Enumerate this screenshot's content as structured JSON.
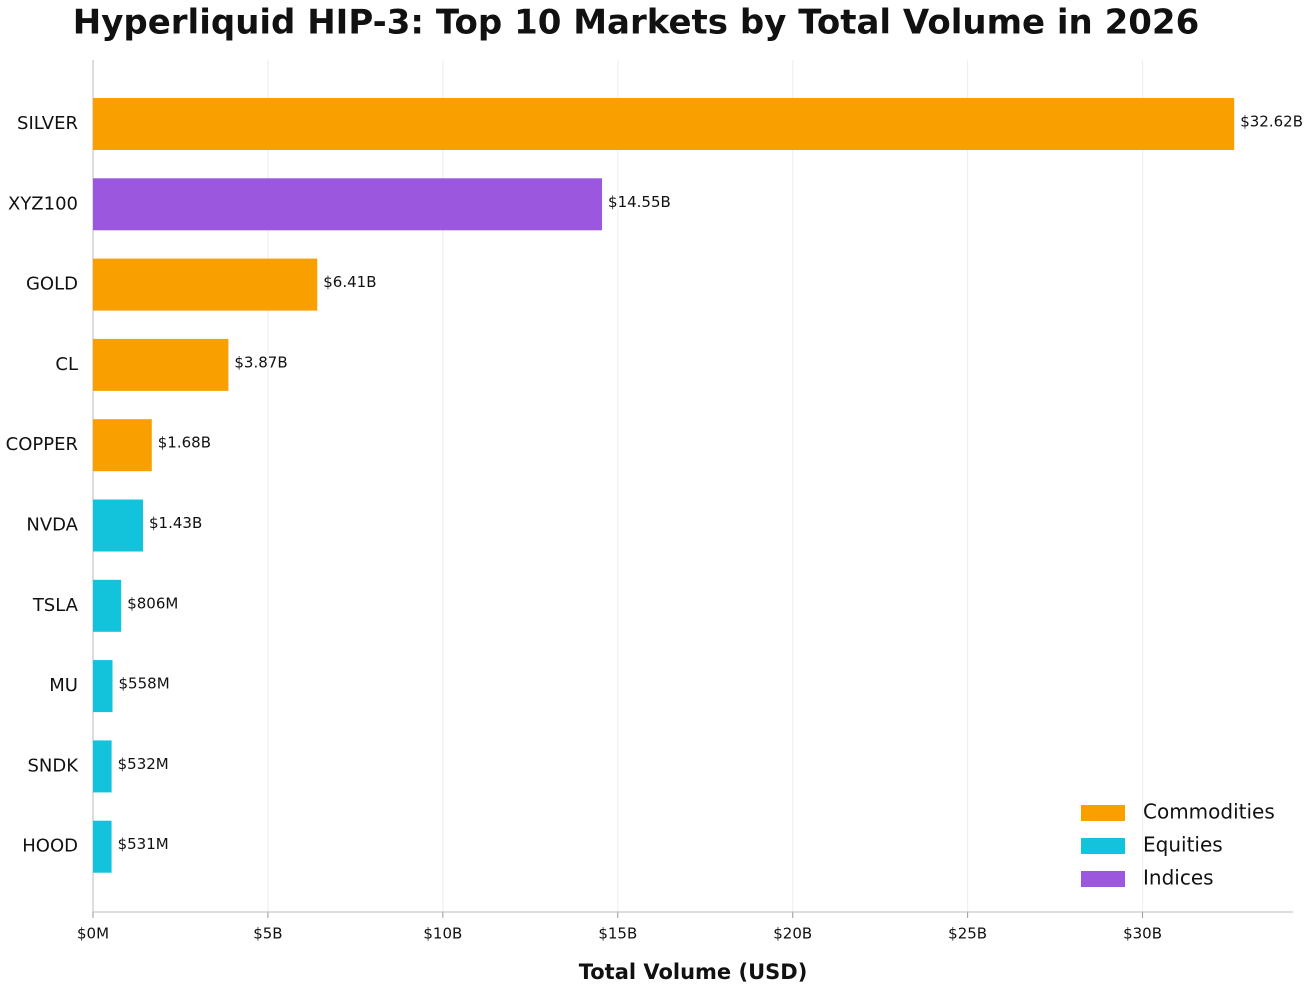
{
  "chart_data": {
    "type": "bar",
    "orientation": "horizontal",
    "title": "Hyperliquid HIP-3: Top 10 Markets by Total Volume in 2026",
    "x_label": "Total Volume (USD)",
    "categories": [
      "SILVER",
      "XYZ100",
      "GOLD",
      "CL",
      "COPPER",
      "NVDA",
      "TSLA",
      "MU",
      "SNDK",
      "HOOD"
    ],
    "series": [
      {
        "name": "Commodities",
        "color": "#f9a000",
        "values": [
          32.62,
          null,
          6.41,
          3.87,
          1.68,
          null,
          null,
          null,
          null,
          null
        ],
        "value_labels": [
          "$32.62B",
          null,
          "$6.41B",
          "$3.87B",
          "$1.68B",
          null,
          null,
          null,
          null,
          null
        ]
      },
      {
        "name": "Equities",
        "color": "#12c3db",
        "values": [
          null,
          null,
          null,
          null,
          null,
          1.43,
          0.806,
          0.558,
          0.532,
          0.531
        ],
        "value_labels": [
          null,
          null,
          null,
          null,
          null,
          "$1.43B",
          "$806M",
          "$558M",
          "$532M",
          "$531M"
        ]
      },
      {
        "name": "Indices",
        "color": "#9b57de",
        "values": [
          null,
          14.55,
          null,
          null,
          null,
          null,
          null,
          null,
          null,
          null
        ],
        "value_labels": [
          null,
          "$14.55B",
          null,
          null,
          null,
          null,
          null,
          null,
          null,
          null
        ]
      }
    ],
    "xlim": [
      0,
      34.3
    ],
    "xticks": [
      {
        "value": 0,
        "label": "$0M"
      },
      {
        "value": 5,
        "label": "$5B"
      },
      {
        "value": 10,
        "label": "$10B"
      },
      {
        "value": 15,
        "label": "$15B"
      },
      {
        "value": 20,
        "label": "$20B"
      },
      {
        "value": 25,
        "label": "$25B"
      },
      {
        "value": 30,
        "label": "$30B"
      }
    ],
    "grid": true,
    "legend_position": "lower right"
  }
}
